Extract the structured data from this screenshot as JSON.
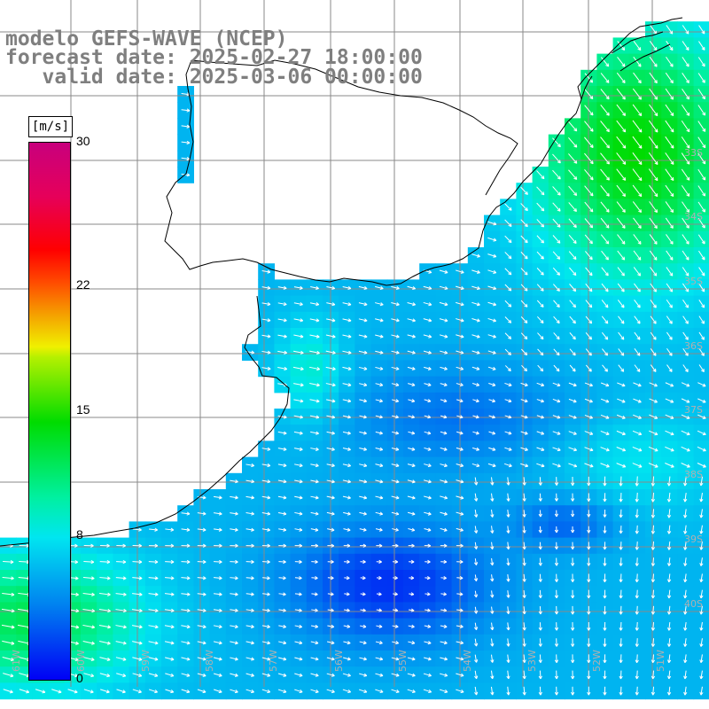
{
  "title": {
    "line1": "modelo GEFS-WAVE (NCEP)",
    "line2": "forecast date: 2025-02-27 18:00:00",
    "line3": "   valid date: 2025-03-06 00:00:00"
  },
  "colorbar": {
    "unit": "[m/s]",
    "ticks": [
      "30",
      "22",
      "15",
      "8",
      "0"
    ],
    "tick_values": [
      30,
      22,
      15,
      8,
      0
    ],
    "range": [
      0,
      30
    ],
    "colors": {
      "0": "#0000f5",
      "4": "#0082f0",
      "8": "#00e6f0",
      "10": "#00f0a0",
      "14": "#00dc00",
      "18": "#b4f000",
      "19": "#f0f000",
      "20": "#f5a000",
      "22": "#ff4b00",
      "24": "#ff0000",
      "27": "#e6005a",
      "30": "#c8007d"
    }
  },
  "map": {
    "field": "wind speed with wind direction arrows",
    "land_color": "#ffffff",
    "coastline_color": "#000000",
    "grid_color": "#888888",
    "arrow_color": "#ffffff",
    "lat_labels": [
      "33S",
      "34S",
      "35S",
      "36S",
      "37S",
      "38S",
      "39S",
      "40S"
    ],
    "lon_labels": [
      "61W",
      "60W",
      "59W",
      "58W",
      "57W",
      "56W",
      "55W",
      "54W",
      "53W",
      "52W",
      "51W"
    ]
  }
}
